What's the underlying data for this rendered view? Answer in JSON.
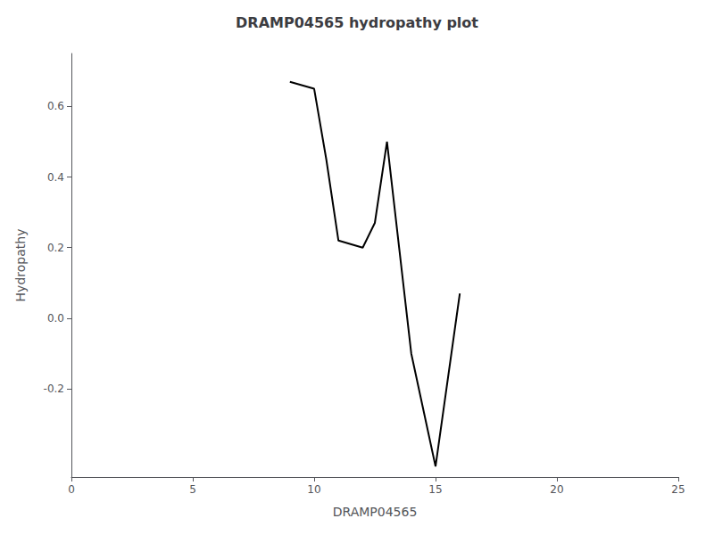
{
  "chart_data": {
    "type": "line",
    "title": "DRAMP04565 hydropathy plot",
    "xlabel": "DRAMP04565",
    "ylabel": "Hydropathy",
    "x": [
      9,
      10,
      10.5,
      11,
      12,
      12.5,
      13,
      13.5,
      14,
      15,
      16
    ],
    "values": [
      0.67,
      0.65,
      0.45,
      0.22,
      0.2,
      0.27,
      0.5,
      0.2,
      -0.1,
      -0.42,
      0.07
    ],
    "color": "#000000",
    "xlim": [
      0,
      25
    ],
    "xticks": [
      0,
      5,
      10,
      15,
      20,
      25
    ],
    "ylim": [
      -0.45,
      0.75
    ],
    "yticks": [
      -0.2,
      {
        "value": 0,
        "label": "0.0"
      },
      0.2,
      0.4,
      0.6
    ],
    "grid": false
  }
}
